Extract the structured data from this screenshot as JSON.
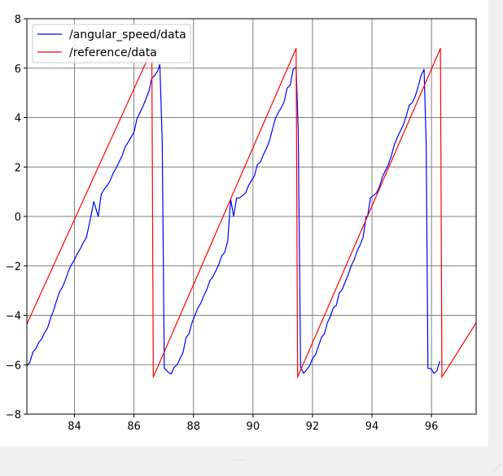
{
  "window": {
    "background_color": "#f0f0f0",
    "figure_color": "#ffffff",
    "splitter_handle": "......",
    "resize_grip": "⋰"
  },
  "chart_data": {
    "type": "line",
    "title": "",
    "xlabel": "",
    "ylabel": "",
    "xlim": [
      82.4,
      97.5
    ],
    "ylim": [
      -8,
      8
    ],
    "xticks": [
      84,
      86,
      88,
      90,
      92,
      94,
      96
    ],
    "yticks": [
      -8,
      -6,
      -4,
      -2,
      0,
      2,
      4,
      6,
      8
    ],
    "grid": true,
    "grid_color": "#808080",
    "legend_position": "top-left",
    "series": [
      {
        "name": "/angular_speed/data",
        "color": "#0000ff",
        "points": [
          [
            82.4,
            -6.05
          ],
          [
            82.5,
            -5.9
          ],
          [
            82.6,
            -5.5
          ],
          [
            82.7,
            -5.35
          ],
          [
            82.8,
            -5.1
          ],
          [
            82.9,
            -4.95
          ],
          [
            83.0,
            -4.7
          ],
          [
            83.1,
            -4.5
          ],
          [
            83.2,
            -4.1
          ],
          [
            83.3,
            -3.8
          ],
          [
            83.4,
            -3.4
          ],
          [
            83.5,
            -3.05
          ],
          [
            83.6,
            -2.85
          ],
          [
            83.7,
            -2.55
          ],
          [
            83.8,
            -2.2
          ],
          [
            83.9,
            -1.95
          ],
          [
            84.0,
            -1.75
          ],
          [
            84.1,
            -1.5
          ],
          [
            84.2,
            -1.3
          ],
          [
            84.3,
            -1.05
          ],
          [
            84.4,
            -0.85
          ],
          [
            84.5,
            -0.3
          ],
          [
            84.65,
            0.6
          ],
          [
            84.8,
            0.0
          ],
          [
            84.9,
            0.9
          ],
          [
            85.0,
            1.1
          ],
          [
            85.1,
            1.25
          ],
          [
            85.2,
            1.45
          ],
          [
            85.3,
            1.75
          ],
          [
            85.4,
            1.95
          ],
          [
            85.5,
            2.2
          ],
          [
            85.6,
            2.45
          ],
          [
            85.7,
            2.8
          ],
          [
            85.8,
            3.0
          ],
          [
            85.9,
            3.2
          ],
          [
            86.0,
            3.4
          ],
          [
            86.1,
            3.95
          ],
          [
            86.2,
            4.2
          ],
          [
            86.3,
            4.45
          ],
          [
            86.4,
            4.75
          ],
          [
            86.5,
            5.05
          ],
          [
            86.6,
            5.6
          ],
          [
            86.7,
            5.7
          ],
          [
            86.8,
            5.9
          ],
          [
            86.87,
            6.15
          ],
          [
            86.95,
            3.0
          ],
          [
            87.02,
            -6.15
          ],
          [
            87.15,
            -6.3
          ],
          [
            87.25,
            -6.38
          ],
          [
            87.35,
            -6.1
          ],
          [
            87.45,
            -6.0
          ],
          [
            87.55,
            -5.75
          ],
          [
            87.65,
            -5.5
          ],
          [
            87.75,
            -4.9
          ],
          [
            87.85,
            -4.75
          ],
          [
            87.95,
            -4.3
          ],
          [
            88.05,
            -4.0
          ],
          [
            88.15,
            -3.7
          ],
          [
            88.25,
            -3.5
          ],
          [
            88.35,
            -3.2
          ],
          [
            88.45,
            -2.95
          ],
          [
            88.55,
            -2.6
          ],
          [
            88.65,
            -2.45
          ],
          [
            88.75,
            -2.2
          ],
          [
            88.85,
            -1.95
          ],
          [
            88.95,
            -1.6
          ],
          [
            89.05,
            -1.45
          ],
          [
            89.15,
            -1.0
          ],
          [
            89.25,
            0.7
          ],
          [
            89.35,
            0.0
          ],
          [
            89.45,
            0.75
          ],
          [
            89.55,
            0.75
          ],
          [
            89.65,
            0.85
          ],
          [
            89.75,
            0.95
          ],
          [
            89.85,
            1.25
          ],
          [
            89.95,
            1.45
          ],
          [
            90.05,
            1.65
          ],
          [
            90.15,
            2.1
          ],
          [
            90.25,
            2.2
          ],
          [
            90.35,
            2.5
          ],
          [
            90.45,
            2.75
          ],
          [
            90.55,
            3.05
          ],
          [
            90.65,
            3.5
          ],
          [
            90.75,
            3.95
          ],
          [
            90.85,
            4.2
          ],
          [
            90.95,
            4.4
          ],
          [
            91.05,
            4.65
          ],
          [
            91.15,
            5.2
          ],
          [
            91.25,
            5.3
          ],
          [
            91.35,
            5.95
          ],
          [
            91.45,
            6.05
          ],
          [
            91.52,
            3.5
          ],
          [
            91.6,
            -6.1
          ],
          [
            91.7,
            -6.35
          ],
          [
            91.8,
            -6.2
          ],
          [
            91.9,
            -6.05
          ],
          [
            92.0,
            -5.75
          ],
          [
            92.1,
            -5.6
          ],
          [
            92.2,
            -5.25
          ],
          [
            92.3,
            -4.9
          ],
          [
            92.4,
            -4.75
          ],
          [
            92.5,
            -4.3
          ],
          [
            92.6,
            -4.05
          ],
          [
            92.7,
            -3.7
          ],
          [
            92.8,
            -3.6
          ],
          [
            92.9,
            -3.1
          ],
          [
            93.0,
            -2.95
          ],
          [
            93.1,
            -2.65
          ],
          [
            93.2,
            -2.35
          ],
          [
            93.3,
            -2.0
          ],
          [
            93.4,
            -1.75
          ],
          [
            93.5,
            -1.4
          ],
          [
            93.6,
            -1.15
          ],
          [
            93.7,
            -0.85
          ],
          [
            93.8,
            0.0
          ],
          [
            93.85,
            0.0
          ],
          [
            93.95,
            0.75
          ],
          [
            94.05,
            0.85
          ],
          [
            94.15,
            0.95
          ],
          [
            94.25,
            1.2
          ],
          [
            94.35,
            1.6
          ],
          [
            94.45,
            1.85
          ],
          [
            94.55,
            2.1
          ],
          [
            94.65,
            2.45
          ],
          [
            94.75,
            2.9
          ],
          [
            94.85,
            3.2
          ],
          [
            94.95,
            3.45
          ],
          [
            95.05,
            3.7
          ],
          [
            95.15,
            4.05
          ],
          [
            95.25,
            4.5
          ],
          [
            95.35,
            4.6
          ],
          [
            95.45,
            4.85
          ],
          [
            95.55,
            5.25
          ],
          [
            95.65,
            5.7
          ],
          [
            95.75,
            5.95
          ],
          [
            95.82,
            3.0
          ],
          [
            95.88,
            -6.15
          ],
          [
            95.98,
            -6.15
          ],
          [
            96.08,
            -6.35
          ],
          [
            96.18,
            -6.25
          ],
          [
            96.28,
            -5.85
          ]
        ]
      },
      {
        "name": "/reference/data",
        "color": "#ff0000",
        "points": [
          [
            82.4,
            -4.35
          ],
          [
            86.6,
            6.75
          ],
          [
            86.65,
            -6.5
          ],
          [
            91.45,
            6.8
          ],
          [
            91.5,
            -6.5
          ],
          [
            96.3,
            6.8
          ],
          [
            96.35,
            -6.5
          ],
          [
            97.5,
            -4.3
          ]
        ]
      }
    ]
  }
}
